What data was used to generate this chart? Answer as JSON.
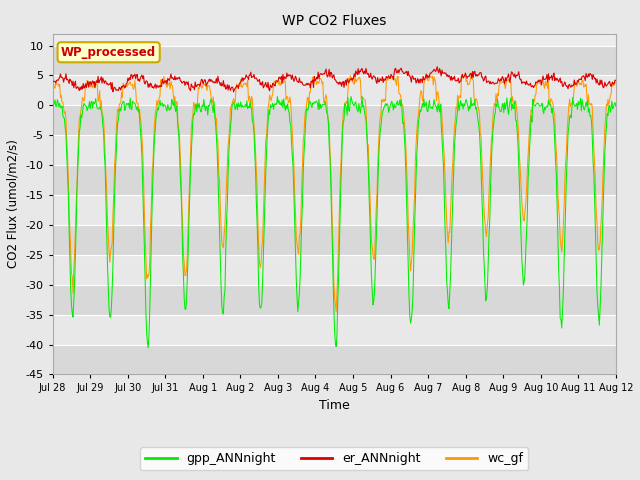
{
  "title": "WP CO2 Fluxes",
  "xlabel": "Time",
  "ylabel_display": "CO2 Flux (umol/m2/s)",
  "ylim": [
    -45,
    12
  ],
  "yticks": [
    10,
    5,
    0,
    -5,
    -10,
    -15,
    -20,
    -25,
    -30,
    -35,
    -40,
    -45
  ],
  "annotation_text": "WP_processed",
  "annotation_color": "#cc0000",
  "annotation_bg": "#ffffcc",
  "annotation_border": "#ccaa00",
  "color_gpp": "#00ee00",
  "color_er": "#dd0000",
  "color_wc": "#ff9900",
  "legend_labels": [
    "gpp_ANNnight",
    "er_ANNnight",
    "wc_gf"
  ],
  "fig_bg": "#e8e8e8",
  "axes_bg": "#ececec",
  "n_days": 15,
  "xtick_labels": [
    "Jul 28",
    "Jul 29",
    "Jul 30",
    "Jul 31",
    "Aug 1",
    "Aug 2",
    "Aug 3",
    "Aug 4",
    "Aug 5",
    "Aug 6",
    "Aug 7",
    "Aug 8",
    "Aug 9",
    "Aug 10",
    "Aug 11",
    "Aug 12"
  ]
}
